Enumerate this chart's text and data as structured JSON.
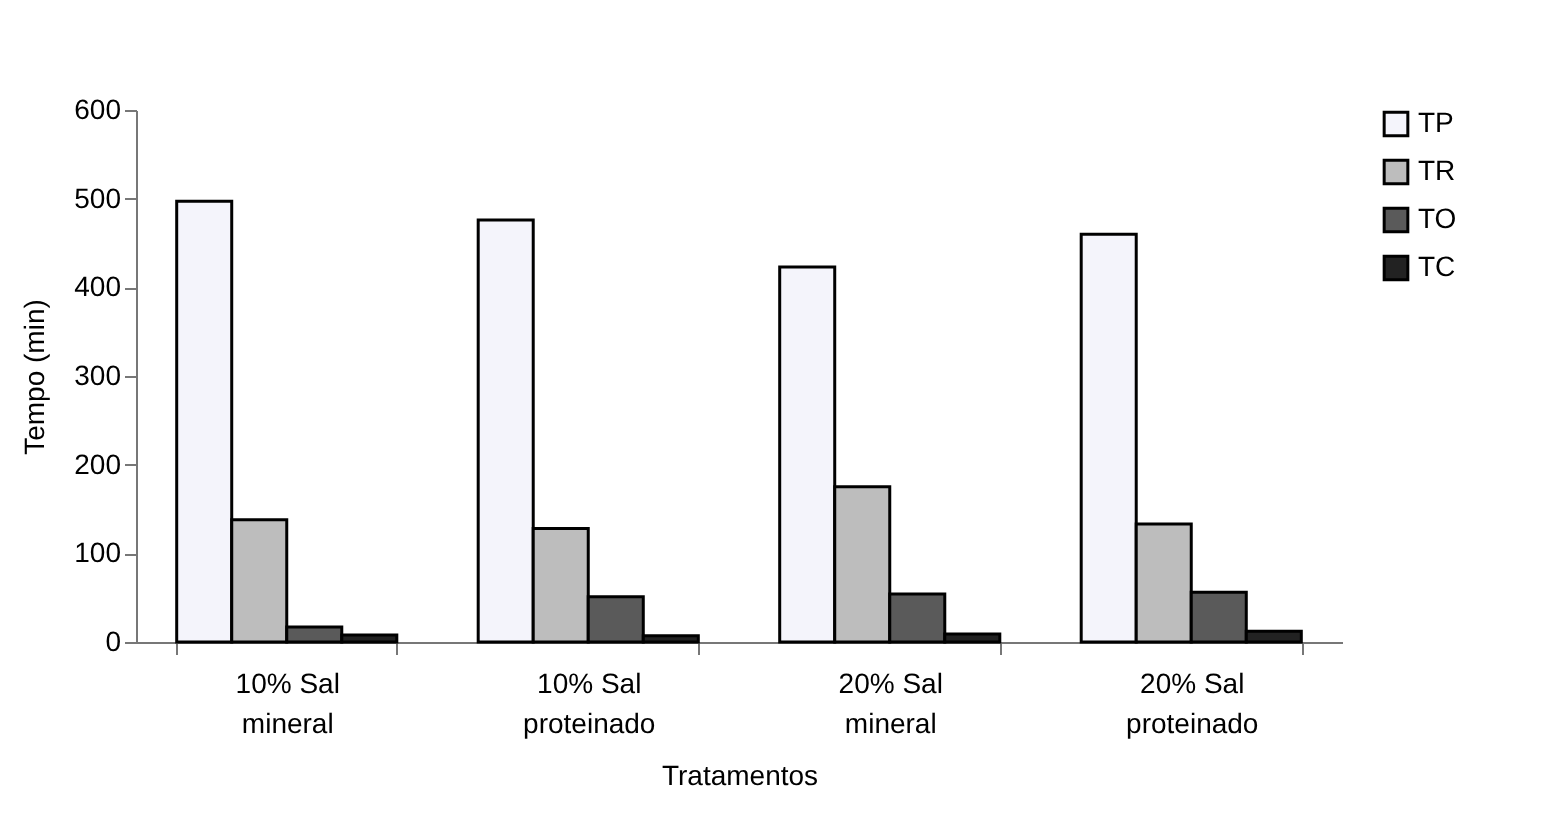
{
  "chart_data": {
    "type": "bar",
    "xlabel": "Tratamentos",
    "ylabel": "Tempo (min)",
    "categories": [
      "10% Sal mineral",
      "10% Sal proteinado",
      "20% Sal mineral",
      "20% Sal proteinado"
    ],
    "series": [
      {
        "name": "TP",
        "color": "#f4f4fb",
        "values": [
          497,
          476,
          423,
          460
        ]
      },
      {
        "name": "TR",
        "color": "#bdbdbd",
        "values": [
          138,
          128,
          175,
          133
        ]
      },
      {
        "name": "TO",
        "color": "#5a5a5a",
        "values": [
          17,
          51,
          54,
          56
        ]
      },
      {
        "name": "TC",
        "color": "#222222",
        "values": [
          8,
          7,
          9,
          12
        ]
      }
    ],
    "ylim": [
      0,
      600
    ],
    "yticks": [
      0,
      100,
      200,
      300,
      400,
      500,
      600
    ],
    "grid": false,
    "legend": "right"
  }
}
